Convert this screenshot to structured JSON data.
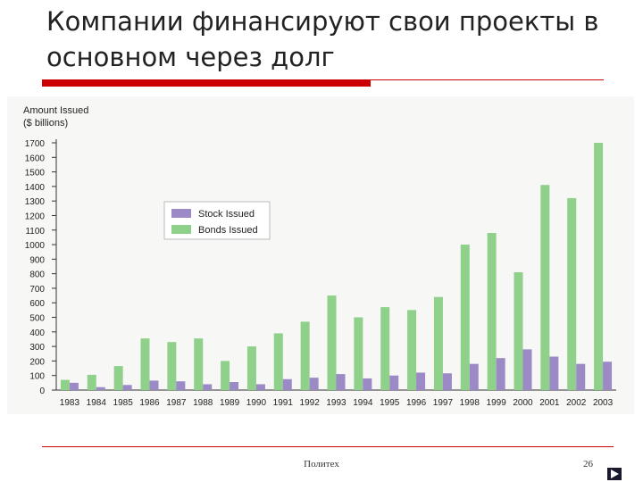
{
  "slide": {
    "title": "Компании финансируют свои проекты в основном через долг",
    "footer_center": "Политех",
    "page_number": "26"
  },
  "colors": {
    "title_rule": "#cc0000",
    "stock": "#9b8ac6",
    "bonds": "#8fd08a",
    "panel": "#f7f7f5"
  },
  "chart_data": {
    "type": "bar",
    "ylabel_lines": [
      "Amount Issued",
      "($ billions)"
    ],
    "xlabel": "",
    "ylim": [
      0,
      1700
    ],
    "yticks": [
      0,
      100,
      200,
      300,
      400,
      500,
      600,
      700,
      800,
      900,
      1000,
      1100,
      1200,
      1300,
      1400,
      1500,
      1600,
      1700
    ],
    "grid": false,
    "legend_position": "upper-left",
    "categories": [
      "1983",
      "1984",
      "1985",
      "1986",
      "1987",
      "1988",
      "1989",
      "1990",
      "1991",
      "1992",
      "1993",
      "1994",
      "1995",
      "1996",
      "1997",
      "1998",
      "1999",
      "2000",
      "2001",
      "2002",
      "2003"
    ],
    "series": [
      {
        "name": "Stock Issued",
        "color": "#9b8ac6",
        "values": [
          50,
          20,
          35,
          65,
          60,
          40,
          55,
          40,
          75,
          85,
          110,
          80,
          100,
          120,
          115,
          180,
          220,
          280,
          230,
          180,
          195
        ]
      },
      {
        "name": "Bonds Issued",
        "color": "#8fd08a",
        "values": [
          70,
          105,
          165,
          355,
          330,
          355,
          200,
          300,
          390,
          470,
          650,
          500,
          570,
          550,
          640,
          1000,
          1080,
          810,
          1410,
          1320,
          1700
        ]
      }
    ]
  }
}
